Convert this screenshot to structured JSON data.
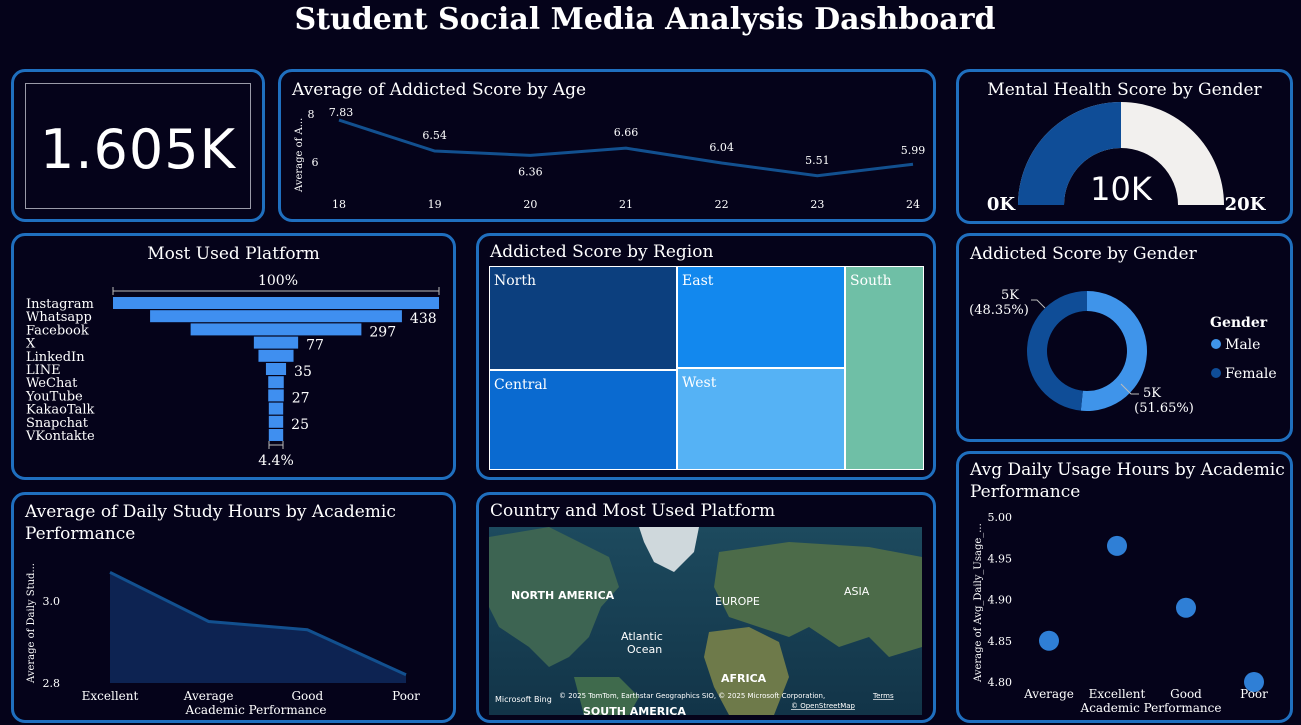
{
  "dashboard": {
    "title": "Student Social Media Analysis Dashboard"
  },
  "kpi": {
    "value": "1.605K"
  },
  "age_chart": {
    "title": "Average of Addicted Score by Age",
    "ylabel": "Average of A...",
    "yticks": [
      "8",
      "6"
    ],
    "chart_data": {
      "type": "line",
      "x": [
        18,
        19,
        20,
        21,
        22,
        23,
        24
      ],
      "values": [
        7.83,
        6.54,
        6.36,
        6.66,
        6.04,
        5.51,
        5.99
      ],
      "labels": [
        "7.83",
        "6.54",
        "6.36",
        "6.66",
        "6.04",
        "5.51",
        "5.99"
      ],
      "ylim": [
        5.0,
        8.0
      ]
    }
  },
  "gauge": {
    "title": "Mental Health Score by Gender",
    "value_label": "10K",
    "min_label": "0K",
    "max_label": "20K",
    "chart_data": {
      "type": "gauge",
      "value": 10000,
      "min": 0,
      "max": 20000
    }
  },
  "funnel": {
    "title": "Most Used Platform",
    "top_pct": "100%",
    "bottom_pct": "4.4%",
    "chart_data": {
      "type": "bar",
      "categories": [
        "Instagram",
        "Whatsapp",
        "Facebook",
        "X",
        "LinkedIn",
        "LINE",
        "WeChat",
        "YouTube",
        "KakaoTalk",
        "Snapchat",
        "VKontakte"
      ],
      "values": [
        567,
        438,
        297,
        77,
        61,
        35,
        27,
        27,
        25,
        25,
        25
      ],
      "labels": [
        "",
        "438",
        "297",
        "77",
        "",
        "35",
        "",
        "27",
        "",
        "25",
        ""
      ]
    }
  },
  "treemap": {
    "title": "Addicted Score by Region",
    "chart_data": {
      "type": "treemap",
      "categories": [
        "North",
        "Central",
        "East",
        "West",
        "South"
      ]
    }
  },
  "donut": {
    "title": "Addicted Score by Gender",
    "legend_title": "Gender",
    "label_female_value": "5K",
    "label_female_pct": "(48.35%)",
    "label_male_value": "5K",
    "label_male_pct": "(51.65%)",
    "legend": [
      "Male",
      "Female"
    ],
    "colors": {
      "Male": "#3f94ea",
      "Female": "#0f4d97"
    },
    "chart_data": {
      "type": "pie",
      "categories": [
        "Male",
        "Female"
      ],
      "values": [
        51.65,
        48.35
      ]
    }
  },
  "area_chart": {
    "title_line1": "Average of Daily Study Hours by Academic",
    "title_line2": "Performance",
    "ylabel": "Average of Daily Stud...",
    "xlabel": "Academic Performance",
    "yticks": [
      "3.0",
      "2.8"
    ],
    "chart_data": {
      "type": "area",
      "categories": [
        "Excellent",
        "Average",
        "Good",
        "Poor"
      ],
      "values": [
        3.07,
        2.95,
        2.93,
        2.82
      ],
      "ylim": [
        2.8,
        3.1
      ]
    }
  },
  "map": {
    "title": "Country and Most Used Platform",
    "labels": [
      "NORTH AMERICA",
      "EUROPE",
      "ASIA",
      "Atlantic",
      "Ocean",
      "AFRICA",
      "SOUTH AMERICA"
    ],
    "attribution": "© 2025 TomTom, Earthstar Geographics SIO, © 2025 Microsoft Corporation,",
    "terms": "Terms",
    "osm": "© OpenStreetMap",
    "bing": "Microsoft Bing"
  },
  "scatter": {
    "title_line1": "Avg Daily Usage Hours by Academic",
    "title_line2": "Performance",
    "ylabel": "Average of Avg_Daily_Usage_...",
    "xlabel": "Academic Performance",
    "yticks": [
      "5.00",
      "4.95",
      "4.90",
      "4.85",
      "4.80"
    ],
    "chart_data": {
      "type": "scatter",
      "categories": [
        "Average",
        "Excellent",
        "Good",
        "Poor"
      ],
      "values": [
        4.85,
        4.965,
        4.89,
        4.8
      ],
      "ylim": [
        4.8,
        5.0
      ]
    }
  }
}
